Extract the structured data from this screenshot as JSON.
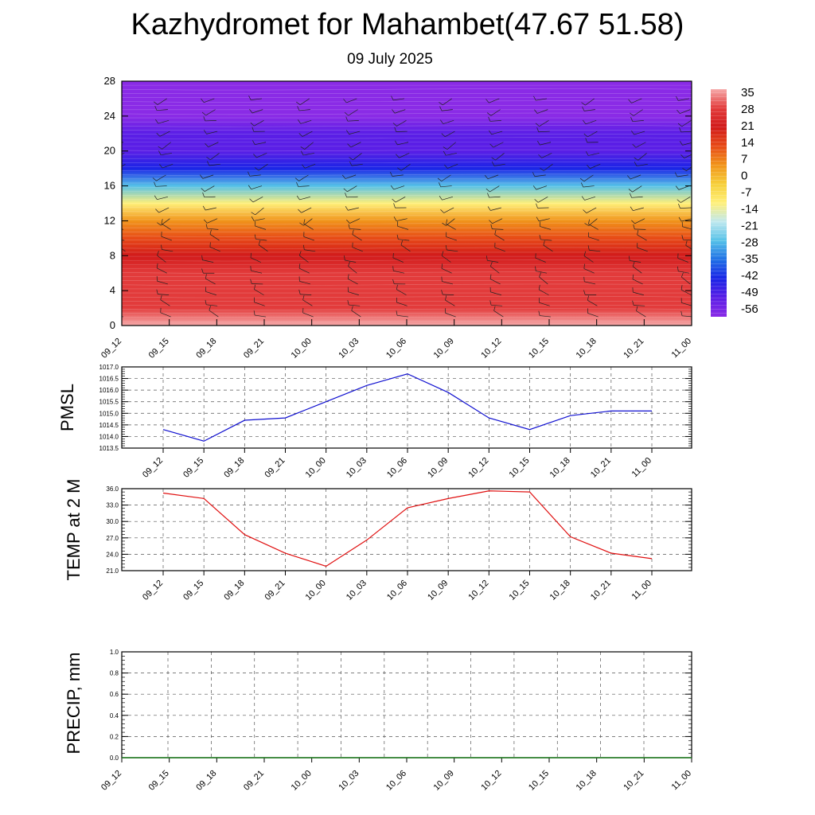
{
  "header": {
    "title": "Kazhydromet for Mahambet(47.67 51.58)",
    "subtitle": "09 July 2025"
  },
  "chart_data": [
    {
      "type": "heatmap",
      "title": "",
      "x_categories": [
        "09_12",
        "09_15",
        "09_18",
        "09_21",
        "10_00",
        "10_03",
        "10_06",
        "10_09",
        "10_12",
        "10_15",
        "10_18",
        "10_21",
        "11_00"
      ],
      "y_ticks": [
        "0",
        "4",
        "8",
        "12",
        "16",
        "20",
        "24",
        "28"
      ],
      "ylim": [
        0,
        28
      ],
      "colorbar_labels": [
        "35",
        "28",
        "21",
        "14",
        "7",
        "0",
        "-7",
        "-14",
        "-21",
        "-28",
        "-35",
        "-42",
        "-49",
        "-56"
      ],
      "z_profile_by_level": [
        {
          "level": 0,
          "value": 35
        },
        {
          "level": 2,
          "value": 30
        },
        {
          "level": 4,
          "value": 27
        },
        {
          "level": 6,
          "value": 24
        },
        {
          "level": 8,
          "value": 18
        },
        {
          "level": 10,
          "value": 10
        },
        {
          "level": 12,
          "value": 2
        },
        {
          "level": 14,
          "value": -10
        },
        {
          "level": 16,
          "value": -28
        },
        {
          "level": 18,
          "value": -40
        },
        {
          "level": 20,
          "value": -48
        },
        {
          "level": 22,
          "value": -52
        },
        {
          "level": 24,
          "value": -56
        },
        {
          "level": 26,
          "value": -58
        },
        {
          "level": 28,
          "value": -57
        }
      ],
      "colors": [
        "#f6a9a9",
        "#e23b3b",
        "#d11a1a",
        "#e74a17",
        "#f1941a",
        "#f6cf3a",
        "#fff07a",
        "#bfe8ef",
        "#55c1e8",
        "#1f6fe6",
        "#1a24e6",
        "#5a1ee6",
        "#8a2be6"
      ]
    },
    {
      "type": "line",
      "ylabel": "PMSL",
      "categories": [
        "09_12",
        "09_15",
        "09_18",
        "09_21",
        "10_00",
        "10_03",
        "10_06",
        "10_09",
        "10_12",
        "10_15",
        "10_18",
        "10_21",
        "11_00"
      ],
      "series": [
        {
          "values": [
            1014.3,
            1013.8,
            1014.7,
            1014.8,
            1015.5,
            1016.2,
            1016.7,
            1015.9,
            1014.8,
            1014.3,
            1014.9,
            1015.1,
            1015.1
          ]
        }
      ],
      "ylim": [
        1013.5,
        1017.0
      ],
      "y_ticks": [
        "1013.5",
        "1014.0",
        "1014.5",
        "1015.0",
        "1015.5",
        "1016.0",
        "1016.5",
        "1017.0"
      ],
      "color": "#1010d0"
    },
    {
      "type": "line",
      "ylabel": "TEMP at 2 M",
      "categories": [
        "09_12",
        "09_15",
        "09_18",
        "09_21",
        "10_00",
        "10_03",
        "10_06",
        "10_09",
        "10_12",
        "10_15",
        "10_18",
        "10_21",
        "11_00"
      ],
      "series": [
        {
          "values": [
            35.2,
            34.2,
            27.6,
            24.2,
            21.8,
            26.6,
            32.5,
            34.2,
            35.6,
            35.4,
            27.2,
            24.2,
            23.2
          ]
        }
      ],
      "ylim": [
        21.0,
        36.0
      ],
      "y_ticks": [
        "21.0",
        "24.0",
        "27.0",
        "30.0",
        "33.0",
        "36.0"
      ],
      "color": "#e01010"
    },
    {
      "type": "line",
      "ylabel": "PRECIP, mm",
      "categories": [
        "09_12",
        "09_15",
        "09_18",
        "09_21",
        "10_00",
        "10_03",
        "10_06",
        "10_09",
        "10_12",
        "10_15",
        "10_18",
        "10_21",
        "11_00"
      ],
      "series": [
        {
          "values": [
            0,
            0,
            0,
            0,
            0,
            0,
            0,
            0,
            0,
            0,
            0,
            0,
            0
          ]
        }
      ],
      "ylim": [
        0.0,
        1.0
      ],
      "y_ticks": [
        "0.0",
        "0.2",
        "0.4",
        "0.6",
        "0.8",
        "1.0"
      ],
      "color": "#1a7a1a"
    }
  ]
}
